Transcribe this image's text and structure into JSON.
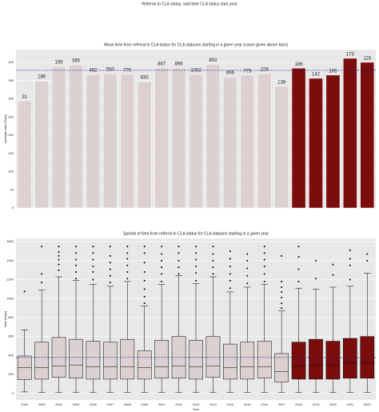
{
  "title": "Referral to CLA status, wait time CLA status start year",
  "chart_data": [
    {
      "type": "bar",
      "title": "Mean time from referral to CLA status for CLA statuses starting in a given year (cases given above bars)",
      "ylabel": "Average wait (Days)",
      "categories": [
        null,
        null,
        null,
        null,
        null,
        null,
        null,
        null,
        null,
        null,
        null,
        null,
        null,
        null,
        null,
        null,
        null,
        null,
        null,
        null,
        null
      ],
      "values": [
        294,
        349,
        389,
        393,
        367,
        369,
        367,
        347,
        385,
        385,
        367,
        395,
        360,
        365,
        369,
        334,
        384,
        356,
        365,
        411,
        400
      ],
      "cases": [
        31,
        186,
        199,
        385,
        462,
        550,
        770,
        830,
        867,
        896,
        1082,
        892,
        896,
        773,
        226,
        139,
        186,
        142,
        165,
        173,
        116
      ],
      "colors": [
        "#ddd0d0",
        "#ddd0d0",
        "#ddd0d0",
        "#ddd0d0",
        "#ddd0d0",
        "#ddd0d0",
        "#ddd0d0",
        "#ddd0d0",
        "#ddd0d0",
        "#ddd0d0",
        "#ddd0d0",
        "#ddd0d0",
        "#ddd0d0",
        "#ddd0d0",
        "#ddd0d0",
        "#ddd0d0",
        "#7b0d0d",
        "#7b0d0d",
        "#7b0d0d",
        "#7b0d0d",
        "#7b0d0d"
      ],
      "reference_line": 378,
      "reference_color": "#1a1a8c",
      "ylim": [
        0,
        435
      ],
      "yticks": [
        0,
        50,
        100,
        150,
        200,
        250,
        300,
        350,
        400
      ],
      "grid": true
    },
    {
      "type": "box",
      "title": "Spread of time from referral to CLA status for CLA statuses starting in a given year",
      "ylabel": "Wait (Days)",
      "xlabel": "Year",
      "categories": [
        "2002",
        "2003",
        "2004",
        "2005",
        "2006",
        "2007",
        "2008",
        "2009",
        "2010",
        "2011",
        "2012",
        "2013",
        "2014",
        "2015",
        "2016",
        "2017",
        "2018",
        "2019",
        "2020",
        "2021",
        "2022"
      ],
      "boxes": [
        {
          "low": 15,
          "q1": 145,
          "median": 270,
          "q3": 395,
          "high": 670,
          "outliers": [
            1075
          ]
        },
        {
          "low": 10,
          "q1": 150,
          "median": 270,
          "q3": 540,
          "high": 1090,
          "outliers": [
            1170,
            1260,
            1550
          ]
        },
        {
          "low": 10,
          "q1": 170,
          "median": 290,
          "q3": 590,
          "high": 1230,
          "outliers": [
            1300,
            1360,
            1410,
            1450,
            1490,
            1550
          ]
        },
        {
          "low": 10,
          "q1": 160,
          "median": 300,
          "q3": 570,
          "high": 1190,
          "outliers": [
            1210,
            1280,
            1350,
            1410,
            1480,
            1550
          ]
        },
        {
          "low": 10,
          "q1": 150,
          "median": 280,
          "q3": 550,
          "high": 1150,
          "outliers": [
            1200,
            1280,
            1340,
            1410,
            1480,
            1550
          ]
        },
        {
          "low": 10,
          "q1": 150,
          "median": 280,
          "q3": 540,
          "high": 1130,
          "outliers": [
            1170,
            1240,
            1310,
            1380,
            1450,
            1550
          ]
        },
        {
          "low": 10,
          "q1": 150,
          "median": 280,
          "q3": 570,
          "high": 1180,
          "outliers": [
            1210,
            1280,
            1350,
            1420,
            1480,
            1550
          ]
        },
        {
          "low": 10,
          "q1": 150,
          "median": 270,
          "q3": 450,
          "high": 920,
          "outliers": [
            950,
            1020,
            1100,
            1190,
            1280,
            1380,
            1480,
            1550
          ]
        },
        {
          "low": 10,
          "q1": 160,
          "median": 280,
          "q3": 560,
          "high": 1150,
          "outliers": [
            1180,
            1260,
            1330,
            1400,
            1470,
            1550
          ]
        },
        {
          "low": 10,
          "q1": 160,
          "median": 290,
          "q3": 600,
          "high": 1240,
          "outliers": [
            1260,
            1330,
            1400,
            1480,
            1550
          ]
        },
        {
          "low": 10,
          "q1": 150,
          "median": 280,
          "q3": 560,
          "high": 1160,
          "outliers": [
            1190,
            1270,
            1340,
            1410,
            1480,
            1550
          ]
        },
        {
          "low": 10,
          "q1": 170,
          "median": 290,
          "q3": 600,
          "high": 1230,
          "outliers": [
            1260,
            1330,
            1400,
            1470,
            1550
          ]
        },
        {
          "low": 10,
          "q1": 150,
          "median": 270,
          "q3": 520,
          "high": 1070,
          "outliers": [
            1110,
            1190,
            1260,
            1340,
            1420,
            1500
          ]
        },
        {
          "low": 10,
          "q1": 150,
          "median": 280,
          "q3": 540,
          "high": 1120,
          "outliers": [
            1160,
            1240,
            1320,
            1400,
            1470
          ]
        },
        {
          "low": 10,
          "q1": 160,
          "median": 280,
          "q3": 550,
          "high": 1150,
          "outliers": [
            1180,
            1260,
            1340,
            1410,
            1480,
            1550
          ]
        },
        {
          "low": 10,
          "q1": 120,
          "median": 230,
          "q3": 420,
          "high": 870,
          "outliers": [
            900,
            950,
            1010,
            1070,
            1120,
            1180,
            1450
          ]
        },
        {
          "low": 10,
          "q1": 150,
          "median": 290,
          "q3": 540,
          "high": 1110,
          "outliers": [
            1180,
            1310,
            1440,
            1550
          ]
        },
        {
          "low": 10,
          "q1": 150,
          "median": 300,
          "q3": 570,
          "high": 1100,
          "outliers": [
            1210,
            1400
          ]
        },
        {
          "low": 10,
          "q1": 150,
          "median": 300,
          "q3": 550,
          "high": 1120,
          "outliers": [
            1250,
            1360
          ]
        },
        {
          "low": 10,
          "q1": 160,
          "median": 320,
          "q3": 580,
          "high": 1130,
          "outliers": [
            1200,
            1350,
            1420,
            1510
          ]
        },
        {
          "low": 10,
          "q1": 160,
          "median": 320,
          "q3": 600,
          "high": 1270,
          "outliers": [
            1400,
            1470
          ]
        }
      ],
      "colors": [
        "#ddd0d0",
        "#ddd0d0",
        "#ddd0d0",
        "#ddd0d0",
        "#ddd0d0",
        "#ddd0d0",
        "#ddd0d0",
        "#ddd0d0",
        "#ddd0d0",
        "#ddd0d0",
        "#ddd0d0",
        "#ddd0d0",
        "#ddd0d0",
        "#ddd0d0",
        "#ddd0d0",
        "#ddd0d0",
        "#7b0d0d",
        "#7b0d0d",
        "#7b0d0d",
        "#7b0d0d",
        "#7b0d0d"
      ],
      "reference_line": 379,
      "reference_color": "#1a1a8c",
      "ylim": [
        -70,
        1635
      ],
      "yticks": [
        0,
        200,
        400,
        600,
        800,
        1000,
        1200,
        1400,
        1600
      ],
      "grid": true
    }
  ]
}
